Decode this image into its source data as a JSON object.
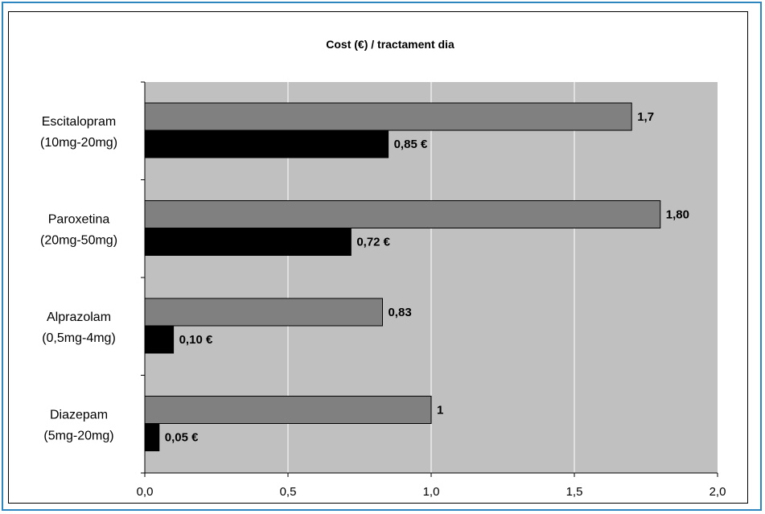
{
  "chart_data": {
    "type": "bar",
    "orientation": "horizontal",
    "title": "Cost (€) / tractament dia",
    "categories": [
      [
        "Escitalopram",
        "(10mg-20mg)"
      ],
      [
        "Paroxetina",
        "(20mg-50mg)"
      ],
      [
        "Alprazolam",
        "(0,5mg-4mg)"
      ],
      [
        "Diazepam",
        "(5mg-20mg)"
      ]
    ],
    "series": [
      {
        "color": "#808080",
        "values": [
          1.7,
          1.8,
          0.83,
          1.0
        ],
        "labels": [
          "1,7",
          "1,80",
          "0,83",
          "1"
        ]
      },
      {
        "color": "#000000",
        "values": [
          0.85,
          0.72,
          0.1,
          0.05
        ],
        "labels": [
          "0,85 €",
          "0,72 €",
          "0,10 €",
          "0,05 €"
        ]
      }
    ],
    "xlim": [
      0,
      2
    ],
    "xticks": [
      0,
      0.5,
      1,
      1.5,
      2
    ],
    "xtick_labels": [
      "0,0",
      "0,5",
      "1,0",
      "1,5",
      "2,0"
    ],
    "grid": "vertical",
    "plot_background": "#c0c0c0",
    "legend": "none"
  }
}
